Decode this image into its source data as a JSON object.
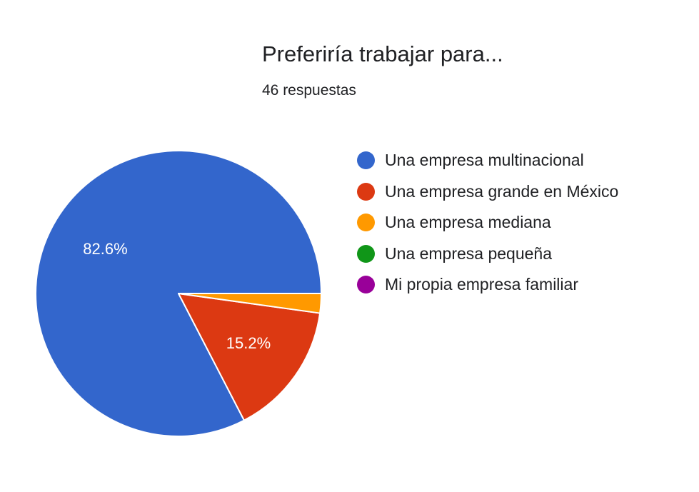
{
  "chart_data": {
    "type": "pie",
    "title": "Preferiría trabajar para...",
    "subtitle": "46 respuestas",
    "legend_position": "right",
    "slices": [
      {
        "label": "Una empresa multinacional",
        "value": 82.6,
        "color": "#3366cc",
        "display_label": "82.6%"
      },
      {
        "label": "Una empresa grande en México",
        "value": 15.2,
        "color": "#dc3912",
        "display_label": "15.2%"
      },
      {
        "label": "Una empresa mediana",
        "value": 2.2,
        "color": "#ff9900",
        "display_label": ""
      },
      {
        "label": "Una empresa pequeña",
        "value": 0,
        "color": "#109618",
        "display_label": ""
      },
      {
        "label": "Mi propia empresa familiar",
        "value": 0,
        "color": "#990099",
        "display_label": ""
      }
    ]
  }
}
